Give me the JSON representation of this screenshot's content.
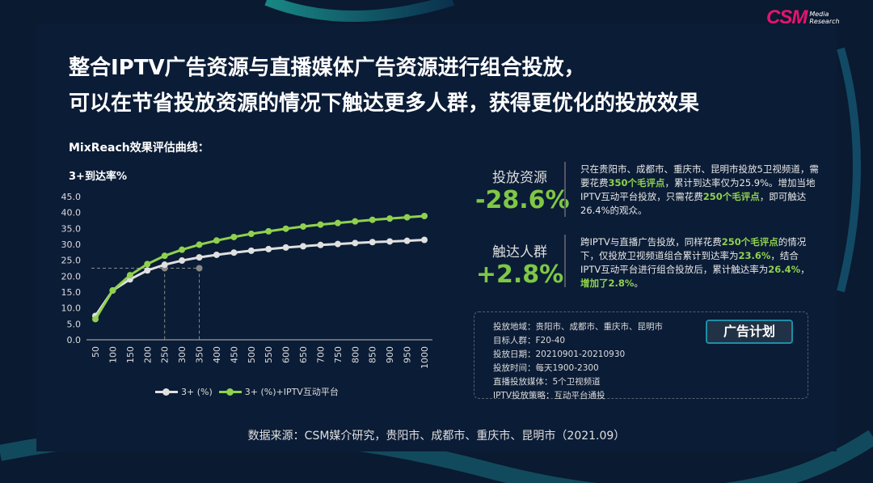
{
  "logo": {
    "brand": "CSM",
    "sub1": "Media",
    "sub2": "Research"
  },
  "title": {
    "line1": "整合IPTV广告资源与直播媒体广告资源进行组合投放，",
    "line2": "可以在节省投放资源的情况下触达更多人群，获得更优化的投放效果"
  },
  "section_title": "MixReach效果评估曲线：",
  "chart_data": {
    "type": "line",
    "ylabel": "3+到达率%",
    "ylim": [
      0,
      45
    ],
    "yticks": [
      "0.0",
      "5.0",
      "10.0",
      "15.0",
      "20.0",
      "25.0",
      "30.0",
      "35.0",
      "40.0",
      "45.0"
    ],
    "categories": [
      "50",
      "100",
      "150",
      "200",
      "250",
      "300",
      "350",
      "400",
      "450",
      "500",
      "550",
      "600",
      "650",
      "700",
      "750",
      "800",
      "850",
      "900",
      "950",
      "1000"
    ],
    "series": [
      {
        "name": "3+ (%)",
        "color": "#e0e0e0",
        "values": [
          7.5,
          15.5,
          19.0,
          21.8,
          23.6,
          24.9,
          25.9,
          26.7,
          27.4,
          28.0,
          28.5,
          29.0,
          29.4,
          29.8,
          30.1,
          30.4,
          30.7,
          30.9,
          31.1,
          31.4
        ]
      },
      {
        "name": "3+ (%)+IPTV互动平台",
        "color": "#8fd14f",
        "values": [
          6.5,
          15.5,
          20.3,
          23.8,
          26.4,
          28.3,
          29.9,
          31.2,
          32.3,
          33.3,
          34.1,
          34.9,
          35.6,
          36.2,
          36.7,
          37.2,
          37.7,
          38.1,
          38.5,
          38.9
        ]
      }
    ],
    "reference": {
      "y": 22.5,
      "x": [
        "250",
        "350"
      ]
    },
    "legend": "bottom"
  },
  "stats": [
    {
      "label": "投放资源",
      "value": "-28.6%"
    },
    {
      "label": "触达人群",
      "value": "+2.8%"
    }
  ],
  "desc1": {
    "a": "只在贵阳市、成都市、重庆市、昆明市投放5卫视频道，需要花费",
    "b": "350个毛评点",
    "c": "，累计到达率仅为25.9%。增加当地IPTV互动平台投放，只需花费",
    "d": "250个毛评点",
    "e": "，即可触达26.4%的观众。"
  },
  "desc2": {
    "a": "跨IPTV与直播广告投放，同样花费",
    "b": "250个毛评点",
    "c": "的情况下，仅投放卫视频道组合累计到达率为",
    "d": "23.6%",
    "e": "，结合IPTV互动平台进行组合投放后，累计触达率为",
    "f": "26.4%",
    "g": "，",
    "h": "增加了2.8%",
    "i": "。"
  },
  "info": [
    "投放地域：贵阳市、成都市、重庆市、昆明市",
    "目标人群：F20-40",
    "投放日期：20210901-20210930",
    "投放时间：每天1900-2300",
    "直播投放媒体：5个卫视频道",
    "IPTV投放策略：互动平台通投"
  ],
  "plan_button": "广告计划",
  "source": "数据来源：CSM媒介研究，贵阳市、成都市、重庆市、昆明市（2021.09）"
}
